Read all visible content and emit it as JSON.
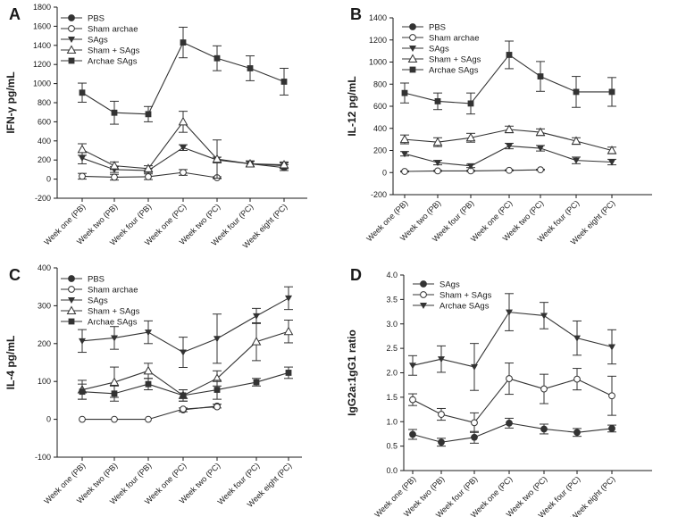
{
  "chart_data": [
    {
      "panel": "A",
      "type": "line",
      "ylabel": "IFN-γ pg/mL",
      "xlabel": "",
      "ylim": [
        -200,
        1800
      ],
      "yticks": [
        -200,
        0,
        200,
        400,
        600,
        800,
        1000,
        1200,
        1400,
        1600,
        1800
      ],
      "legend_position": "top-left",
      "categories": [
        "Week one (PB)",
        "Week two (PB)",
        "Week four (PB)",
        "Week one (PC)",
        "Week two (PC)",
        "Week four (PC)",
        "Week eight (PC)"
      ],
      "series": [
        {
          "name": "PBS",
          "marker": "circle-filled",
          "values": [
            null,
            null,
            null,
            null,
            null,
            160,
            120
          ],
          "errors": [
            null,
            null,
            null,
            null,
            null,
            25,
            30
          ]
        },
        {
          "name": "Sham archae",
          "marker": "circle-open",
          "values": [
            30,
            20,
            25,
            70,
            15,
            null,
            null
          ],
          "errors": [
            30,
            30,
            30,
            30,
            10,
            null,
            null
          ]
        },
        {
          "name": "SAgs",
          "marker": "triangle-down",
          "values": [
            220,
            100,
            90,
            330,
            200,
            160,
            140
          ],
          "errors": [
            60,
            30,
            20,
            30,
            30,
            30,
            30
          ]
        },
        {
          "name": "Sham + SAgs",
          "marker": "triangle-up-open",
          "values": [
            310,
            140,
            110,
            600,
            210,
            160,
            150
          ],
          "errors": [
            60,
            40,
            30,
            110,
            200,
            30,
            30
          ]
        },
        {
          "name": "Archae SAgs",
          "marker": "square",
          "values": [
            905,
            695,
            680,
            1430,
            1265,
            1160,
            1020
          ],
          "errors": [
            100,
            120,
            80,
            160,
            130,
            130,
            140
          ]
        }
      ]
    },
    {
      "panel": "B",
      "type": "line",
      "ylabel": "IL-12 pg/mL",
      "xlabel": "",
      "ylim": [
        -200,
        1400
      ],
      "yticks": [
        -200,
        0,
        200,
        400,
        600,
        800,
        1000,
        1200,
        1400
      ],
      "legend_position": "top-left",
      "categories": [
        "Week one (PB)",
        "Week two (PB)",
        "Week four (PB)",
        "Week one (PC)",
        "Week two (PC)",
        "Week four (PC)",
        "Week eight (PC)"
      ],
      "series": [
        {
          "name": "PBS",
          "marker": "circle-filled",
          "values": [
            null,
            null,
            null,
            null,
            null,
            null,
            null
          ],
          "errors": [
            null,
            null,
            null,
            null,
            null,
            null,
            null
          ]
        },
        {
          "name": "Sham archae",
          "marker": "circle-open",
          "values": [
            10,
            15,
            15,
            20,
            25,
            null,
            null
          ],
          "errors": [
            5,
            5,
            5,
            5,
            5,
            null,
            null
          ]
        },
        {
          "name": "SAgs",
          "marker": "triangle-down",
          "values": [
            170,
            90,
            60,
            240,
            220,
            110,
            95
          ],
          "errors": [
            20,
            20,
            15,
            25,
            25,
            30,
            25
          ]
        },
        {
          "name": "Sham + SAgs",
          "marker": "triangle-up-open",
          "values": [
            300,
            275,
            315,
            390,
            365,
            285,
            200
          ],
          "errors": [
            40,
            40,
            40,
            30,
            30,
            30,
            30
          ]
        },
        {
          "name": "Archae SAgs",
          "marker": "square",
          "values": [
            720,
            645,
            625,
            1065,
            870,
            730,
            730
          ],
          "errors": [
            90,
            75,
            95,
            125,
            135,
            140,
            130
          ]
        }
      ]
    },
    {
      "panel": "C",
      "type": "line",
      "ylabel": "IL-4 pg/mL",
      "xlabel": "",
      "ylim": [
        -100,
        400
      ],
      "yticks": [
        -100,
        0,
        100,
        200,
        300,
        400
      ],
      "legend_position": "top-left",
      "categories": [
        "Week one (PB)",
        "Week two (PB)",
        "Week four (PB)",
        "Week one (PC)",
        "Week two (PC)",
        "Week four (PC)",
        "Week eight (PC)"
      ],
      "series": [
        {
          "name": "PBS",
          "marker": "circle-filled",
          "values": [
            null,
            null,
            null,
            25,
            35,
            null,
            null
          ],
          "errors": [
            null,
            null,
            null,
            5,
            5,
            null,
            null
          ]
        },
        {
          "name": "Sham archae",
          "marker": "circle-open",
          "values": [
            0,
            0,
            0,
            27,
            33,
            null,
            null
          ],
          "errors": [
            null,
            null,
            null,
            null,
            null,
            null,
            null
          ]
        },
        {
          "name": "SAgs",
          "marker": "triangle-down",
          "values": [
            207,
            215,
            230,
            177,
            213,
            273,
            320
          ],
          "errors": [
            30,
            30,
            30,
            40,
            65,
            20,
            30
          ]
        },
        {
          "name": "Sham + SAgs",
          "marker": "triangle-up-open",
          "values": [
            78,
            98,
            128,
            63,
            108,
            205,
            232
          ],
          "errors": [
            25,
            40,
            20,
            15,
            20,
            50,
            30
          ]
        },
        {
          "name": "Archae SAgs",
          "marker": "square",
          "values": [
            73,
            68,
            93,
            63,
            78,
            98,
            123
          ],
          "errors": [
            20,
            20,
            15,
            15,
            25,
            10,
            15
          ]
        }
      ]
    },
    {
      "panel": "D",
      "type": "line",
      "ylabel": "IgG2a:1gG1 ratio",
      "xlabel": "",
      "ylim": [
        0,
        4
      ],
      "yticks": [
        "0.0",
        "0.5",
        "1.0",
        "1.5",
        "2.0",
        "2.5",
        "3.0",
        "3.5",
        "4.0"
      ],
      "legend_position": "top-left",
      "categories": [
        "Week one (PB)",
        "Week two (PB)",
        "Week four (PB)",
        "Week one (PC)",
        "Week two (PC)",
        "Week four (PC)",
        "Week eight (PC)"
      ],
      "series": [
        {
          "name": "SAgs",
          "marker": "circle-filled",
          "values": [
            0.74,
            0.58,
            0.68,
            0.97,
            0.85,
            0.78,
            0.86
          ],
          "errors": [
            0.1,
            0.08,
            0.12,
            0.1,
            0.1,
            0.08,
            0.07
          ]
        },
        {
          "name": "Sham + SAgs",
          "marker": "circle-open",
          "values": [
            1.45,
            1.15,
            0.98,
            1.88,
            1.67,
            1.87,
            1.53
          ],
          "errors": [
            0.12,
            0.12,
            0.2,
            0.32,
            0.3,
            0.22,
            0.4
          ]
        },
        {
          "name": "Archae SAgs",
          "marker": "triangle-down",
          "values": [
            2.15,
            2.28,
            2.12,
            3.24,
            3.17,
            2.71,
            2.53
          ],
          "errors": [
            0.2,
            0.27,
            0.48,
            0.38,
            0.27,
            0.35,
            0.35
          ]
        }
      ]
    }
  ]
}
